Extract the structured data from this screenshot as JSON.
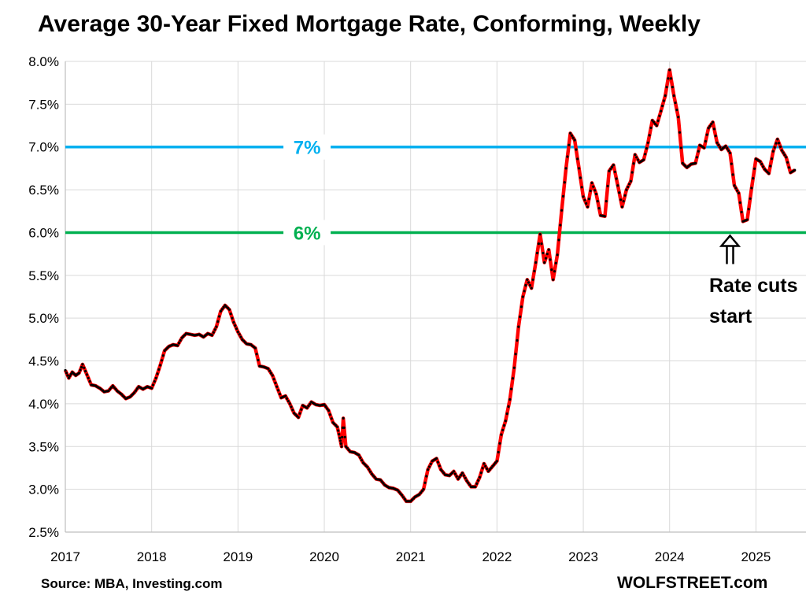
{
  "chart_data": {
    "type": "line",
    "title": "Average 30-Year Fixed Mortgage Rate, Conforming, Weekly",
    "source": "Source: MBA, Investing.com",
    "brand": "WOLFSTREET.com",
    "x_ticks": [
      "2017",
      "2018",
      "2019",
      "2020",
      "2021",
      "2022",
      "2023",
      "2024",
      "2025"
    ],
    "y_ticks": [
      "2.5%",
      "3.0%",
      "3.5%",
      "4.0%",
      "4.5%",
      "5.0%",
      "5.5%",
      "6.0%",
      "6.5%",
      "7.0%",
      "7.5%",
      "8.0%"
    ],
    "xlim": [
      2017.0,
      2025.25
    ],
    "ylim": [
      2.5,
      8.0
    ],
    "grid": true,
    "colors": {
      "line": "#ff0000",
      "markers": "#000000",
      "ref7": "#00b0f0",
      "ref6": "#00b050"
    },
    "reference_lines": [
      {
        "value": 7.0,
        "label": "7%",
        "color": "#00b0f0",
        "label_x": 2019.8
      },
      {
        "value": 6.0,
        "label": "6%",
        "color": "#00b050",
        "label_x": 2019.8
      }
    ],
    "annotation": {
      "lines": [
        "Rate cuts",
        "start"
      ],
      "arrow_x": 2024.7,
      "arrow_target": 6.0
    },
    "series": [
      {
        "points": [
          [
            2017.0,
            4.39
          ],
          [
            2017.04,
            4.3
          ],
          [
            2017.08,
            4.37
          ],
          [
            2017.12,
            4.33
          ],
          [
            2017.16,
            4.36
          ],
          [
            2017.2,
            4.46
          ],
          [
            2017.25,
            4.34
          ],
          [
            2017.3,
            4.22
          ],
          [
            2017.35,
            4.21
          ],
          [
            2017.4,
            4.18
          ],
          [
            2017.45,
            4.14
          ],
          [
            2017.5,
            4.15
          ],
          [
            2017.55,
            4.21
          ],
          [
            2017.6,
            4.15
          ],
          [
            2017.65,
            4.11
          ],
          [
            2017.7,
            4.06
          ],
          [
            2017.75,
            4.08
          ],
          [
            2017.8,
            4.13
          ],
          [
            2017.85,
            4.2
          ],
          [
            2017.9,
            4.17
          ],
          [
            2017.95,
            4.2
          ],
          [
            2018.0,
            4.18
          ],
          [
            2018.05,
            4.3
          ],
          [
            2018.1,
            4.45
          ],
          [
            2018.15,
            4.62
          ],
          [
            2018.2,
            4.67
          ],
          [
            2018.25,
            4.69
          ],
          [
            2018.3,
            4.68
          ],
          [
            2018.35,
            4.77
          ],
          [
            2018.4,
            4.82
          ],
          [
            2018.45,
            4.81
          ],
          [
            2018.5,
            4.8
          ],
          [
            2018.55,
            4.81
          ],
          [
            2018.6,
            4.78
          ],
          [
            2018.65,
            4.82
          ],
          [
            2018.7,
            4.8
          ],
          [
            2018.75,
            4.9
          ],
          [
            2018.8,
            5.08
          ],
          [
            2018.85,
            5.15
          ],
          [
            2018.9,
            5.1
          ],
          [
            2018.95,
            4.95
          ],
          [
            2019.0,
            4.84
          ],
          [
            2019.05,
            4.75
          ],
          [
            2019.1,
            4.7
          ],
          [
            2019.15,
            4.69
          ],
          [
            2019.2,
            4.65
          ],
          [
            2019.25,
            4.44
          ],
          [
            2019.3,
            4.43
          ],
          [
            2019.35,
            4.41
          ],
          [
            2019.4,
            4.33
          ],
          [
            2019.45,
            4.2
          ],
          [
            2019.5,
            4.07
          ],
          [
            2019.55,
            4.09
          ],
          [
            2019.6,
            4.0
          ],
          [
            2019.65,
            3.89
          ],
          [
            2019.7,
            3.84
          ],
          [
            2019.75,
            3.98
          ],
          [
            2019.8,
            3.95
          ],
          [
            2019.85,
            4.02
          ],
          [
            2019.9,
            3.99
          ],
          [
            2019.95,
            3.98
          ],
          [
            2020.0,
            3.99
          ],
          [
            2020.05,
            3.92
          ],
          [
            2020.1,
            3.78
          ],
          [
            2020.15,
            3.73
          ],
          [
            2020.18,
            3.6
          ],
          [
            2020.2,
            3.5
          ],
          [
            2020.22,
            3.83
          ],
          [
            2020.25,
            3.5
          ],
          [
            2020.3,
            3.44
          ],
          [
            2020.35,
            3.43
          ],
          [
            2020.4,
            3.4
          ],
          [
            2020.45,
            3.31
          ],
          [
            2020.5,
            3.26
          ],
          [
            2020.55,
            3.18
          ],
          [
            2020.6,
            3.12
          ],
          [
            2020.65,
            3.11
          ],
          [
            2020.7,
            3.05
          ],
          [
            2020.75,
            3.02
          ],
          [
            2020.8,
            3.01
          ],
          [
            2020.85,
            2.99
          ],
          [
            2020.9,
            2.93
          ],
          [
            2020.95,
            2.86
          ],
          [
            2021.0,
            2.86
          ],
          [
            2021.05,
            2.91
          ],
          [
            2021.1,
            2.94
          ],
          [
            2021.15,
            3.0
          ],
          [
            2021.2,
            3.23
          ],
          [
            2021.25,
            3.33
          ],
          [
            2021.3,
            3.36
          ],
          [
            2021.35,
            3.23
          ],
          [
            2021.4,
            3.17
          ],
          [
            2021.45,
            3.16
          ],
          [
            2021.5,
            3.21
          ],
          [
            2021.55,
            3.12
          ],
          [
            2021.6,
            3.19
          ],
          [
            2021.65,
            3.1
          ],
          [
            2021.7,
            3.03
          ],
          [
            2021.75,
            3.03
          ],
          [
            2021.8,
            3.14
          ],
          [
            2021.85,
            3.3
          ],
          [
            2021.9,
            3.21
          ],
          [
            2021.95,
            3.27
          ],
          [
            2022.0,
            3.33
          ],
          [
            2022.05,
            3.64
          ],
          [
            2022.1,
            3.8
          ],
          [
            2022.15,
            4.05
          ],
          [
            2022.2,
            4.42
          ],
          [
            2022.25,
            4.9
          ],
          [
            2022.3,
            5.25
          ],
          [
            2022.35,
            5.45
          ],
          [
            2022.4,
            5.35
          ],
          [
            2022.45,
            5.65
          ],
          [
            2022.5,
            5.98
          ],
          [
            2022.55,
            5.65
          ],
          [
            2022.6,
            5.8
          ],
          [
            2022.65,
            5.45
          ],
          [
            2022.7,
            5.74
          ],
          [
            2022.75,
            6.26
          ],
          [
            2022.8,
            6.75
          ],
          [
            2022.85,
            7.16
          ],
          [
            2022.9,
            7.08
          ],
          [
            2022.95,
            6.75
          ],
          [
            2023.0,
            6.42
          ],
          [
            2023.05,
            6.3
          ],
          [
            2023.1,
            6.58
          ],
          [
            2023.15,
            6.45
          ],
          [
            2023.2,
            6.2
          ],
          [
            2023.25,
            6.19
          ],
          [
            2023.3,
            6.72
          ],
          [
            2023.35,
            6.79
          ],
          [
            2023.4,
            6.55
          ],
          [
            2023.45,
            6.3
          ],
          [
            2023.5,
            6.5
          ],
          [
            2023.55,
            6.6
          ],
          [
            2023.6,
            6.91
          ],
          [
            2023.65,
            6.82
          ],
          [
            2023.7,
            6.85
          ],
          [
            2023.75,
            7.05
          ],
          [
            2023.8,
            7.31
          ],
          [
            2023.85,
            7.25
          ],
          [
            2023.9,
            7.42
          ],
          [
            2023.95,
            7.6
          ],
          [
            2024.0,
            7.9
          ],
          [
            2024.05,
            7.6
          ],
          [
            2024.1,
            7.35
          ],
          [
            2024.15,
            6.81
          ],
          [
            2024.2,
            6.76
          ],
          [
            2024.25,
            6.8
          ],
          [
            2024.3,
            6.81
          ],
          [
            2024.35,
            7.02
          ],
          [
            2024.4,
            6.99
          ],
          [
            2024.45,
            7.22
          ],
          [
            2024.5,
            7.29
          ],
          [
            2024.55,
            7.05
          ],
          [
            2024.6,
            6.97
          ],
          [
            2024.65,
            7.01
          ],
          [
            2024.7,
            6.93
          ],
          [
            2024.75,
            6.55
          ],
          [
            2024.8,
            6.46
          ],
          [
            2024.85,
            6.13
          ],
          [
            2024.9,
            6.15
          ],
          [
            2024.95,
            6.52
          ],
          [
            2025.0,
            6.86
          ],
          [
            2025.05,
            6.83
          ],
          [
            2025.1,
            6.74
          ],
          [
            2025.15,
            6.69
          ],
          [
            2025.2,
            6.95
          ],
          [
            2025.25,
            7.09
          ],
          [
            2025.3,
            6.96
          ],
          [
            2025.35,
            6.88
          ],
          [
            2025.4,
            6.7
          ],
          [
            2025.45,
            6.73
          ]
        ]
      }
    ]
  }
}
